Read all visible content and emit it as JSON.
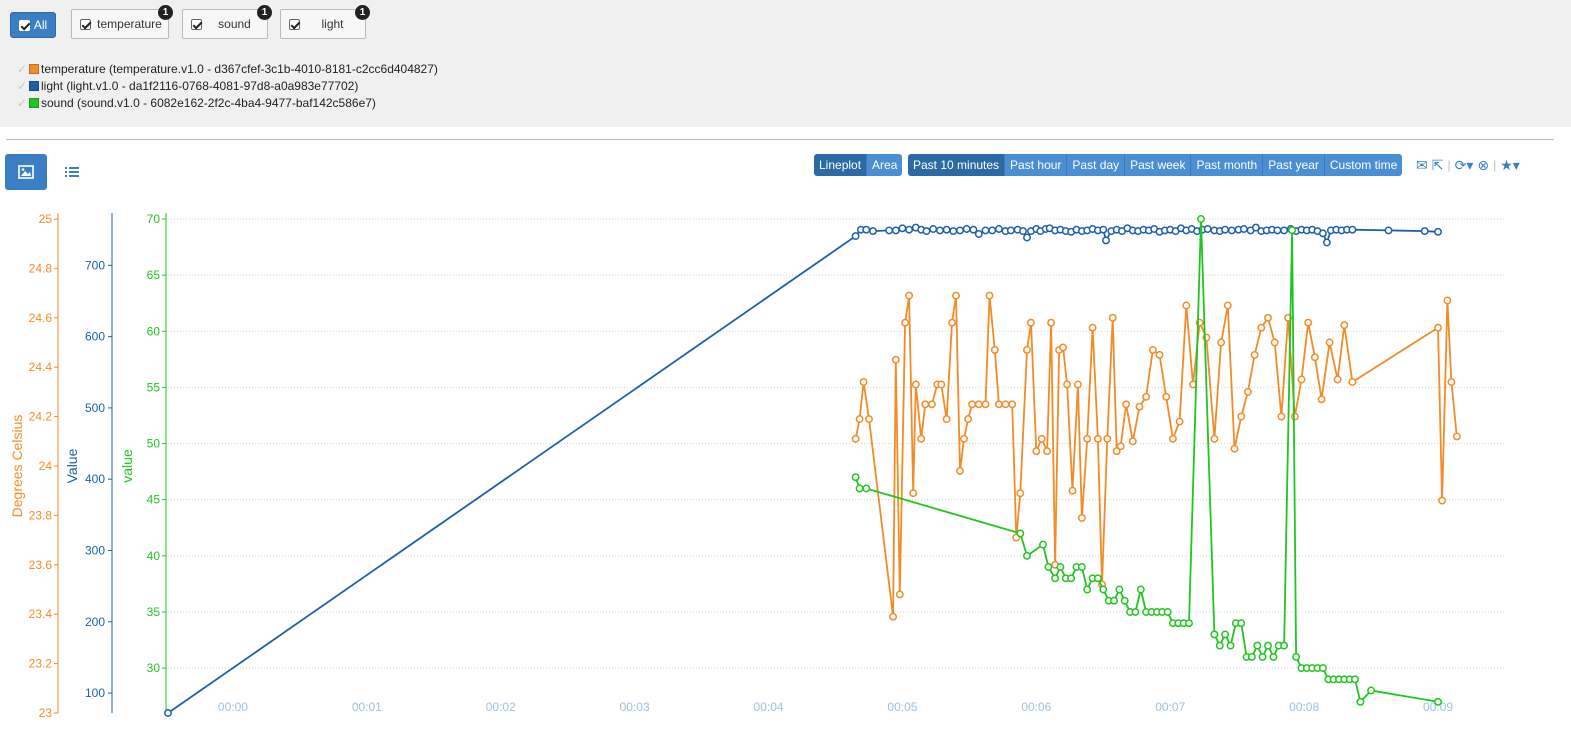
{
  "filters": {
    "all_label": "All",
    "items": [
      {
        "label": "temperature",
        "count": "1"
      },
      {
        "label": "sound",
        "count": "1"
      },
      {
        "label": "light",
        "count": "1"
      }
    ]
  },
  "legend": [
    {
      "text": "temperature (temperature.v1.0 - d367cfef-3c1b-4010-8181-c2cc6d404827)",
      "color": "#f28c28"
    },
    {
      "text": "light (light.v1.0 - da1f2116-0768-4081-97d8-a0a983e77702)",
      "color": "#1f5fa8"
    },
    {
      "text": "sound (sound.v1.0 - 6082e162-2f2c-4ba4-9477-baf142c586e7)",
      "color": "#21c521"
    }
  ],
  "chart_types": [
    "Lineplot",
    "Area"
  ],
  "chart_type_selected": "Lineplot",
  "time_ranges": [
    "Past 10 minutes",
    "Past hour",
    "Past day",
    "Past week",
    "Past month",
    "Past year",
    "Custom time"
  ],
  "time_range_selected": "Past 10 minutes",
  "icons": [
    "image-icon",
    "list-icon",
    "envelope-icon",
    "share-icon",
    "refresh-icon",
    "stop-icon",
    "star-icon"
  ],
  "colors": {
    "accent": "#3a7fc4",
    "temperature": "#f28c28",
    "light": "#1f5fa8",
    "sound": "#21c521"
  },
  "chart_data": {
    "type": "line",
    "xlabel": "",
    "x_ticks": [
      "00:00",
      "00:01",
      "00:02",
      "00:03",
      "00:04",
      "00:05",
      "00:06",
      "00:07",
      "00:08",
      "00:09"
    ],
    "xlim": [
      -0.485,
      9.5
    ],
    "y_axes": [
      {
        "label": "Degrees Celsius",
        "series": "temperature",
        "ylim": [
          23,
          25
        ],
        "ticks": [
          "23",
          "23.2",
          "23.4",
          "23.6",
          "23.8",
          "24",
          "24.2",
          "24.4",
          "24.6",
          "24.8",
          "25"
        ]
      },
      {
        "label": "Value",
        "series": "light",
        "ylim": [
          72,
          765
        ],
        "ticks": [
          "100",
          "200",
          "300",
          "400",
          "500",
          "600",
          "700"
        ]
      },
      {
        "label": "value",
        "series": "sound",
        "ylim": [
          26,
          70
        ],
        "ticks": [
          "30",
          "35",
          "40",
          "45",
          "50",
          "55",
          "60",
          "65",
          "70"
        ]
      }
    ],
    "grid": true,
    "series": [
      {
        "name": "light",
        "color": "#1f5fa8",
        "points": [
          [
            -0.485,
            72
          ],
          [
            4.65,
            741
          ],
          [
            4.69,
            750
          ],
          [
            4.73,
            750
          ],
          [
            4.78,
            748
          ],
          [
            4.9,
            749
          ],
          [
            4.95,
            749
          ],
          [
            5.0,
            752
          ],
          [
            5.05,
            750
          ],
          [
            5.1,
            753
          ],
          [
            5.14,
            750
          ],
          [
            5.18,
            748
          ],
          [
            5.23,
            751
          ],
          [
            5.28,
            749
          ],
          [
            5.33,
            750
          ],
          [
            5.38,
            748
          ],
          [
            5.43,
            749
          ],
          [
            5.48,
            751
          ],
          [
            5.53,
            750
          ],
          [
            5.57,
            744
          ],
          [
            5.62,
            749
          ],
          [
            5.67,
            749
          ],
          [
            5.72,
            751
          ],
          [
            5.77,
            748
          ],
          [
            5.81,
            749
          ],
          [
            5.86,
            750
          ],
          [
            5.9,
            748
          ],
          [
            5.93,
            739
          ],
          [
            5.96,
            748
          ],
          [
            6.0,
            751
          ],
          [
            6.03,
            748
          ],
          [
            6.07,
            751
          ],
          [
            6.1,
            752
          ],
          [
            6.14,
            749
          ],
          [
            6.18,
            750
          ],
          [
            6.22,
            748
          ],
          [
            6.26,
            747
          ],
          [
            6.3,
            750
          ],
          [
            6.34,
            748
          ],
          [
            6.38,
            749
          ],
          [
            6.42,
            751
          ],
          [
            6.46,
            749
          ],
          [
            6.5,
            750
          ],
          [
            6.52,
            735
          ],
          [
            6.56,
            748
          ],
          [
            6.6,
            750
          ],
          [
            6.64,
            748
          ],
          [
            6.68,
            752
          ],
          [
            6.72,
            749
          ],
          [
            6.76,
            748
          ],
          [
            6.8,
            750
          ],
          [
            6.84,
            749
          ],
          [
            6.88,
            751
          ],
          [
            6.92,
            747
          ],
          [
            6.96,
            749
          ],
          [
            7.0,
            750
          ],
          [
            7.04,
            748
          ],
          [
            7.08,
            752
          ],
          [
            7.12,
            749
          ],
          [
            7.16,
            751
          ],
          [
            7.2,
            748
          ],
          [
            7.24,
            750
          ],
          [
            7.28,
            751
          ],
          [
            7.33,
            749
          ],
          [
            7.37,
            748
          ],
          [
            7.41,
            750
          ],
          [
            7.46,
            749
          ],
          [
            7.51,
            750
          ],
          [
            7.55,
            751
          ],
          [
            7.6,
            749
          ],
          [
            7.64,
            753
          ],
          [
            7.68,
            748
          ],
          [
            7.72,
            749
          ],
          [
            7.76,
            750
          ],
          [
            7.8,
            749
          ],
          [
            7.85,
            749
          ],
          [
            7.9,
            751
          ],
          [
            7.94,
            748
          ],
          [
            7.98,
            750
          ],
          [
            8.02,
            749
          ],
          [
            8.06,
            750
          ],
          [
            8.1,
            748
          ],
          [
            8.14,
            745
          ],
          [
            8.17,
            732
          ],
          [
            8.2,
            749
          ],
          [
            8.24,
            750
          ],
          [
            8.28,
            749
          ],
          [
            8.32,
            750
          ],
          [
            8.36,
            750
          ],
          [
            8.63,
            749
          ],
          [
            8.9,
            748
          ],
          [
            9.0,
            747
          ]
        ]
      },
      {
        "name": "temperature",
        "color": "#f28c28",
        "points": [
          [
            4.65,
            24.11
          ],
          [
            4.68,
            24.19
          ],
          [
            4.71,
            24.34
          ],
          [
            4.75,
            24.19
          ],
          [
            4.93,
            23.39
          ],
          [
            4.95,
            24.43
          ],
          [
            4.98,
            23.48
          ],
          [
            5.02,
            24.58
          ],
          [
            5.05,
            24.69
          ],
          [
            5.08,
            23.89
          ],
          [
            5.1,
            24.33
          ],
          [
            5.14,
            24.11
          ],
          [
            5.17,
            24.25
          ],
          [
            5.22,
            24.25
          ],
          [
            5.26,
            24.33
          ],
          [
            5.29,
            24.33
          ],
          [
            5.33,
            24.19
          ],
          [
            5.37,
            24.58
          ],
          [
            5.4,
            24.69
          ],
          [
            5.43,
            23.98
          ],
          [
            5.46,
            24.11
          ],
          [
            5.49,
            24.19
          ],
          [
            5.52,
            24.25
          ],
          [
            5.57,
            24.25
          ],
          [
            5.62,
            24.25
          ],
          [
            5.65,
            24.69
          ],
          [
            5.69,
            24.47
          ],
          [
            5.72,
            24.25
          ],
          [
            5.77,
            24.25
          ],
          [
            5.82,
            24.25
          ],
          [
            5.85,
            23.71
          ],
          [
            5.88,
            23.89
          ],
          [
            5.93,
            24.47
          ],
          [
            5.96,
            24.58
          ],
          [
            6.0,
            24.06
          ],
          [
            6.04,
            24.11
          ],
          [
            6.08,
            24.06
          ],
          [
            6.11,
            24.58
          ],
          [
            6.14,
            23.6
          ],
          [
            6.17,
            24.47
          ],
          [
            6.2,
            24.48
          ],
          [
            6.23,
            24.33
          ],
          [
            6.27,
            23.9
          ],
          [
            6.31,
            24.33
          ],
          [
            6.34,
            23.79
          ],
          [
            6.38,
            24.11
          ],
          [
            6.42,
            24.56
          ],
          [
            6.46,
            24.11
          ],
          [
            6.49,
            23.52
          ],
          [
            6.53,
            24.11
          ],
          [
            6.57,
            24.6
          ],
          [
            6.6,
            24.06
          ],
          [
            6.63,
            24.08
          ],
          [
            6.67,
            24.25
          ],
          [
            6.72,
            24.1
          ],
          [
            6.77,
            24.24
          ],
          [
            6.82,
            24.28
          ],
          [
            6.87,
            24.47
          ],
          [
            6.92,
            24.45
          ],
          [
            6.97,
            24.28
          ],
          [
            7.02,
            24.11
          ],
          [
            7.07,
            24.18
          ],
          [
            7.12,
            24.65
          ],
          [
            7.17,
            24.33
          ],
          [
            7.22,
            24.58
          ],
          [
            7.27,
            24.52
          ],
          [
            7.33,
            24.11
          ],
          [
            7.38,
            24.5
          ],
          [
            7.43,
            24.65
          ],
          [
            7.48,
            24.07
          ],
          [
            7.53,
            24.2
          ],
          [
            7.58,
            24.3
          ],
          [
            7.63,
            24.45
          ],
          [
            7.68,
            24.56
          ],
          [
            7.73,
            24.6
          ],
          [
            7.78,
            24.5
          ],
          [
            7.83,
            24.2
          ],
          [
            7.88,
            24.6
          ],
          [
            7.93,
            24.2
          ],
          [
            7.98,
            24.35
          ],
          [
            8.03,
            24.58
          ],
          [
            8.08,
            24.44
          ],
          [
            8.13,
            24.27
          ],
          [
            8.19,
            24.5
          ],
          [
            8.25,
            24.35
          ],
          [
            8.3,
            24.57
          ],
          [
            8.36,
            24.34
          ],
          [
            9.0,
            24.56
          ],
          [
            9.03,
            23.86
          ],
          [
            9.07,
            24.67
          ],
          [
            9.1,
            24.34
          ],
          [
            9.14,
            24.12
          ]
        ]
      },
      {
        "name": "sound",
        "color": "#21c521",
        "points": [
          [
            4.65,
            47
          ],
          [
            4.68,
            46
          ],
          [
            4.73,
            46
          ],
          [
            5.88,
            42
          ],
          [
            5.93,
            40
          ],
          [
            6.05,
            41
          ],
          [
            6.09,
            39
          ],
          [
            6.14,
            38
          ],
          [
            6.18,
            39
          ],
          [
            6.22,
            38
          ],
          [
            6.26,
            38
          ],
          [
            6.3,
            39
          ],
          [
            6.34,
            39
          ],
          [
            6.38,
            37
          ],
          [
            6.42,
            38
          ],
          [
            6.46,
            38
          ],
          [
            6.5,
            37
          ],
          [
            6.54,
            36
          ],
          [
            6.58,
            36
          ],
          [
            6.62,
            37
          ],
          [
            6.66,
            36
          ],
          [
            6.7,
            35
          ],
          [
            6.74,
            35
          ],
          [
            6.78,
            37
          ],
          [
            6.82,
            35
          ],
          [
            6.86,
            35
          ],
          [
            6.9,
            35
          ],
          [
            6.94,
            35
          ],
          [
            6.98,
            35
          ],
          [
            7.02,
            34
          ],
          [
            7.06,
            34
          ],
          [
            7.1,
            34
          ],
          [
            7.14,
            34
          ],
          [
            7.23,
            70
          ],
          [
            7.33,
            33
          ],
          [
            7.37,
            32
          ],
          [
            7.41,
            33
          ],
          [
            7.45,
            32
          ],
          [
            7.49,
            34
          ],
          [
            7.53,
            34
          ],
          [
            7.57,
            31
          ],
          [
            7.61,
            31
          ],
          [
            7.65,
            32
          ],
          [
            7.69,
            31
          ],
          [
            7.73,
            32
          ],
          [
            7.77,
            31
          ],
          [
            7.81,
            32
          ],
          [
            7.85,
            32
          ],
          [
            7.91,
            69
          ],
          [
            7.94,
            31
          ],
          [
            7.98,
            30
          ],
          [
            8.02,
            30
          ],
          [
            8.06,
            30
          ],
          [
            8.1,
            30
          ],
          [
            8.14,
            30
          ],
          [
            8.18,
            29
          ],
          [
            8.22,
            29
          ],
          [
            8.26,
            29
          ],
          [
            8.3,
            29
          ],
          [
            8.34,
            29
          ],
          [
            8.38,
            29
          ],
          [
            8.42,
            27
          ],
          [
            8.5,
            28
          ],
          [
            9.0,
            27
          ]
        ]
      }
    ]
  }
}
